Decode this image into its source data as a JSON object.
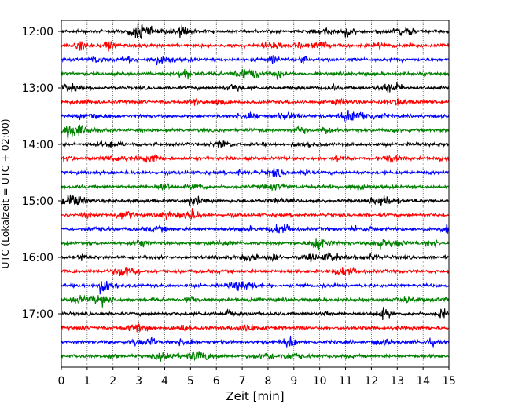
{
  "chart_data": {
    "type": "line",
    "title": "",
    "xlabel": "Zeit  [min]",
    "ylabel": "UTC (Lokalzeit = UTC + 02:00)",
    "xlim": [
      0,
      15
    ],
    "x_ticks": [
      "0",
      "1",
      "2",
      "3",
      "4",
      "5",
      "6",
      "7",
      "8",
      "9",
      "10",
      "11",
      "12",
      "13",
      "14",
      "15"
    ],
    "y_tick_labels": [
      "12:00",
      "13:00",
      "14:00",
      "15:00",
      "16:00",
      "17:00"
    ],
    "trace_interval_min": 15,
    "start_time": "12:00",
    "trace_count": 24,
    "trace_colors": [
      "#000000",
      "#ff0000",
      "#0000ff",
      "#008000"
    ],
    "grid_x": true,
    "legend": "none"
  }
}
